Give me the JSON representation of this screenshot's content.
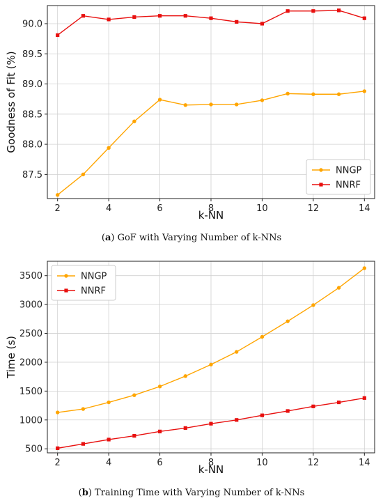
{
  "chart_data": [
    {
      "type": "line",
      "caption_label": "a",
      "caption_text": "GoF with Varying Number of k-NNs",
      "xlabel": "k-NN",
      "ylabel": "Goodness of Fit (%)",
      "x": [
        2,
        3,
        4,
        5,
        6,
        7,
        8,
        9,
        10,
        11,
        12,
        13,
        14
      ],
      "xlim": [
        1.6,
        14.4
      ],
      "xticks": [
        2,
        4,
        6,
        8,
        10,
        12,
        14
      ],
      "ylim": [
        87.1,
        90.3
      ],
      "yticks": [
        87.5,
        88.0,
        88.5,
        89.0,
        89.5,
        90.0
      ],
      "ytick_labels": [
        "87.5",
        "88.0",
        "88.5",
        "89.0",
        "89.5",
        "90.0"
      ],
      "grid": true,
      "legend_position": "lower-right",
      "series": [
        {
          "name": "NNGP",
          "color": "#FFA500",
          "marker": "circle",
          "values": [
            87.16,
            87.5,
            87.94,
            88.38,
            88.74,
            88.65,
            88.66,
            88.66,
            88.73,
            88.84,
            88.83,
            88.83,
            88.88
          ]
        },
        {
          "name": "NNRF",
          "color": "#E8100F",
          "marker": "square",
          "values": [
            89.81,
            90.13,
            90.07,
            90.11,
            90.13,
            90.13,
            90.09,
            90.03,
            90.0,
            90.21,
            90.21,
            90.22,
            90.09
          ]
        }
      ]
    },
    {
      "type": "line",
      "caption_label": "b",
      "caption_text": "Training Time with Varying Number of k-NNs",
      "xlabel": "k-NN",
      "ylabel": "Time (s)",
      "x": [
        2,
        3,
        4,
        5,
        6,
        7,
        8,
        9,
        10,
        11,
        12,
        13,
        14
      ],
      "xlim": [
        1.6,
        14.4
      ],
      "xticks": [
        2,
        4,
        6,
        8,
        10,
        12,
        14
      ],
      "ylim": [
        430,
        3750
      ],
      "yticks": [
        500,
        1000,
        1500,
        2000,
        2500,
        3000,
        3500
      ],
      "ytick_labels": [
        "500",
        "1000",
        "1500",
        "2000",
        "2500",
        "3000",
        "3500"
      ],
      "grid": true,
      "legend_position": "upper-left",
      "series": [
        {
          "name": "NNGP",
          "color": "#FFA500",
          "marker": "circle",
          "values": [
            1130,
            1190,
            1305,
            1430,
            1580,
            1760,
            1960,
            2180,
            2440,
            2710,
            2990,
            3290,
            3630
          ]
        },
        {
          "name": "NNRF",
          "color": "#E8100F",
          "marker": "square",
          "values": [
            510,
            585,
            660,
            725,
            800,
            860,
            935,
            1000,
            1080,
            1155,
            1235,
            1305,
            1380
          ]
        }
      ]
    }
  ]
}
